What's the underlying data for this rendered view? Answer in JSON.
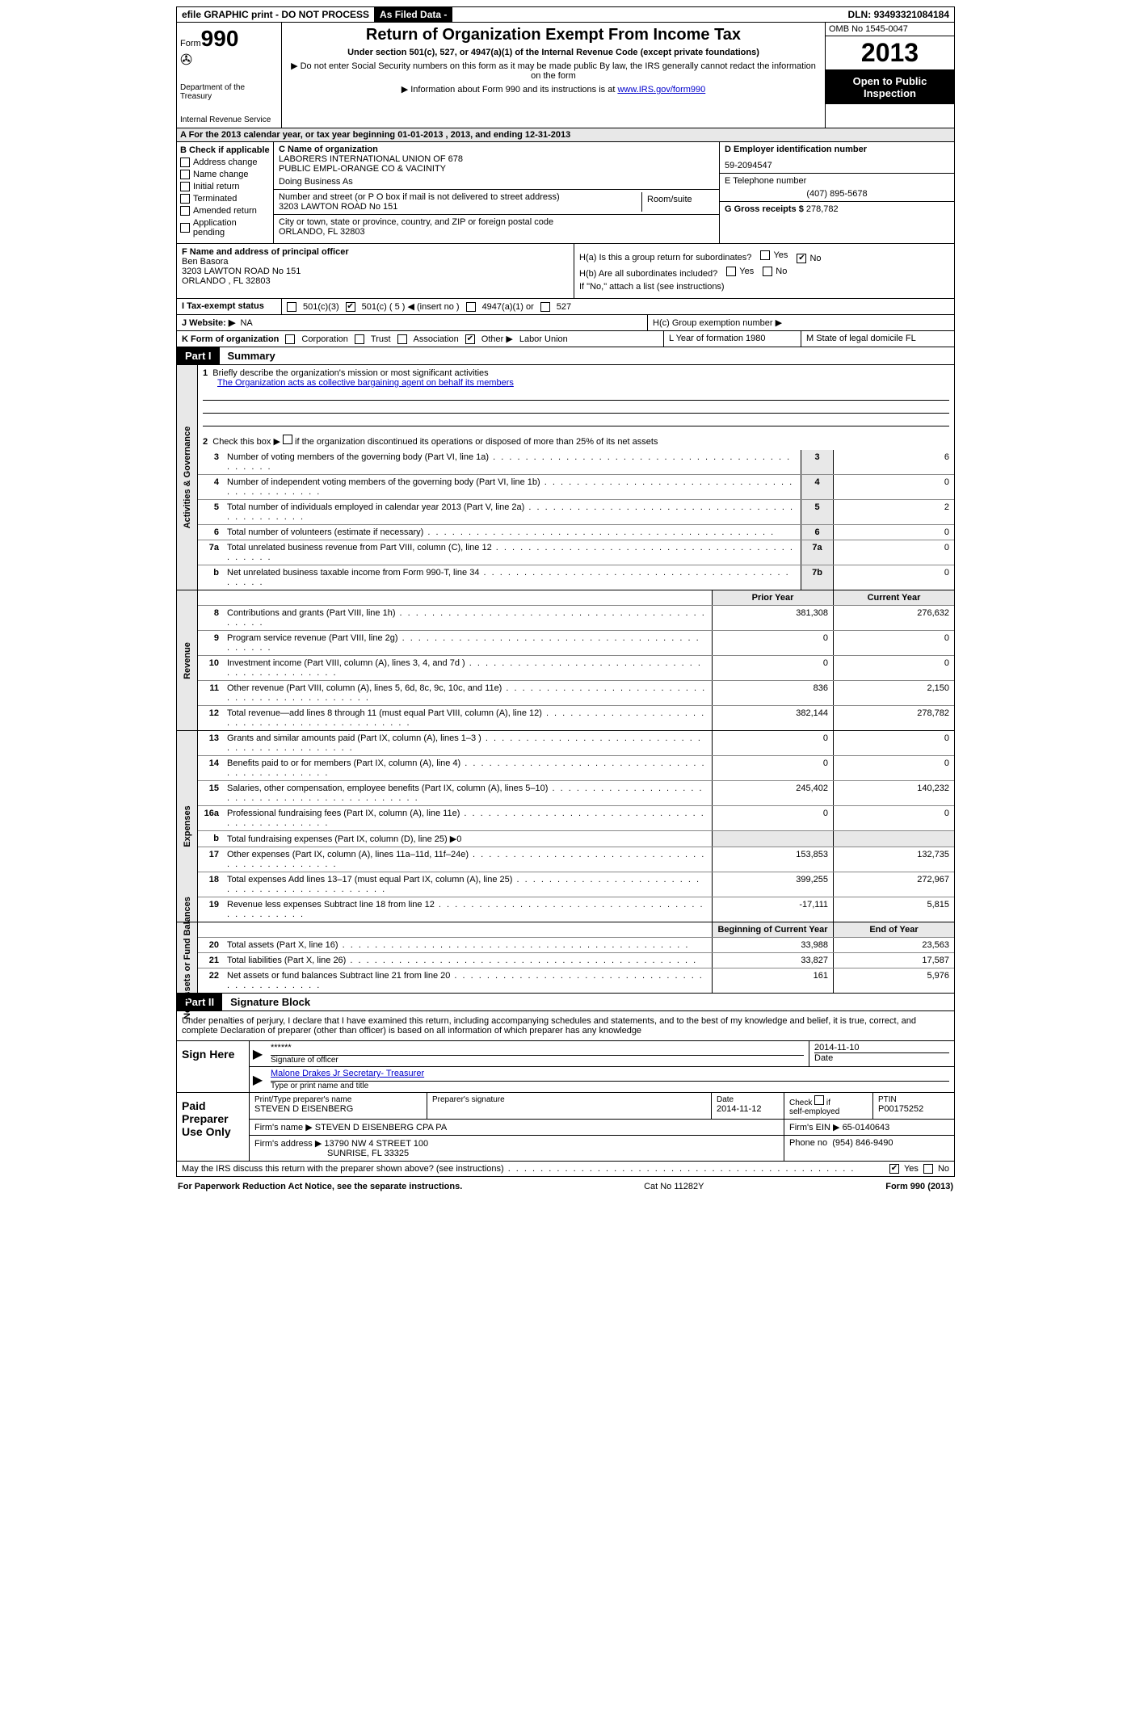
{
  "topbar": {
    "efile": "efile GRAPHIC print - DO NOT PROCESS",
    "asfiled": "As Filed Data -",
    "dln_label": "DLN:",
    "dln": "93493321084184"
  },
  "header": {
    "form_label": "Form",
    "form_no": "990",
    "dept1": "Department of the Treasury",
    "dept2": "Internal Revenue Service",
    "title": "Return of Organization Exempt From Income Tax",
    "sub": "Under section 501(c), 527, or 4947(a)(1) of the Internal Revenue Code (except private foundations)",
    "note1": "▶ Do not enter Social Security numbers on this form as it may be made public  By law, the IRS generally cannot redact the information on the form",
    "note2_pre": "▶ Information about Form 990 and its instructions is at ",
    "note2_link": "www.IRS.gov/form990",
    "omb": "OMB No  1545-0047",
    "year": "2013",
    "open1": "Open to Public",
    "open2": "Inspection"
  },
  "row_a": "A  For the 2013 calendar year, or tax year beginning 01-01-2013     , 2013, and ending 12-31-2013",
  "col_b": {
    "title": "B  Check if applicable",
    "items": [
      "Address change",
      "Name change",
      "Initial return",
      "Terminated",
      "Amended return",
      "Application pending"
    ]
  },
  "col_c": {
    "name_label": "C Name of organization",
    "name1": "LABORERS INTERNATIONAL UNION OF 678",
    "name2": "PUBLIC EMPL-ORANGE CO & VACINITY",
    "dba_label": "Doing Business As",
    "addr_label": "Number and street (or P O  box if mail is not delivered to street address)",
    "addr_room": "Room/suite",
    "addr": "3203 LAWTON ROAD No 151",
    "city_label": "City or town, state or province, country, and ZIP or foreign postal code",
    "city": "ORLANDO, FL  32803",
    "f_label": "F  Name and address of principal officer",
    "f_name": "Ben Basora",
    "f_addr1": "3203 LAWTON ROAD No 151",
    "f_addr2": "ORLANDO , FL  32803"
  },
  "col_d": {
    "ein_label": "D Employer identification number",
    "ein": "59-2094547",
    "tel_label": "E Telephone number",
    "tel": "(407) 895-5678",
    "gross_label": "G Gross receipts $",
    "gross": "278,782"
  },
  "h": {
    "ha": "H(a)  Is this a group return for subordinates?",
    "hb": "H(b)  Are all subordinates included?",
    "hb_note": "If \"No,\" attach a list  (see instructions)",
    "hc": "H(c)  Group exemption number ▶",
    "yes": "Yes",
    "no": "No"
  },
  "row_i": {
    "label": "I   Tax-exempt status",
    "o1": "501(c)(3)",
    "o2": "501(c) ( 5 ) ◀ (insert no )",
    "o3": "4947(a)(1) or",
    "o4": "527"
  },
  "row_j": {
    "label": "J   Website: ▶",
    "val": "NA"
  },
  "row_k": {
    "label": "K Form of organization",
    "opts": [
      "Corporation",
      "Trust",
      "Association",
      "Other ▶"
    ],
    "other_val": "Labor Union",
    "l": "L Year of formation  1980",
    "m": "M State of legal domicile  FL"
  },
  "parts": {
    "p1": "Part I",
    "p1t": "Summary",
    "p2": "Part II",
    "p2t": "Signature Block"
  },
  "vtabs": {
    "ag": "Activities & Governance",
    "rev": "Revenue",
    "exp": "Expenses",
    "na": "Net Assets or Fund Balances"
  },
  "summary": {
    "l1": "Briefly describe the organization's mission or most significant activities",
    "l1v": "The Organization acts as collective bargaining agent on behalf its members",
    "l2": "Check this box ▶     if the organization discontinued its operations or disposed of more than 25% of its net assets",
    "h_prior": "Prior Year",
    "h_curr": "Current Year",
    "h_beg": "Beginning of Current Year",
    "h_end": "End of Year",
    "lines_top": [
      {
        "n": "3",
        "t": "Number of voting members of the governing body (Part VI, line 1a)",
        "box": "3",
        "v": "6"
      },
      {
        "n": "4",
        "t": "Number of independent voting members of the governing body (Part VI, line 1b)",
        "box": "4",
        "v": "0"
      },
      {
        "n": "5",
        "t": "Total number of individuals employed in calendar year 2013 (Part V, line 2a)",
        "box": "5",
        "v": "2"
      },
      {
        "n": "6",
        "t": "Total number of volunteers (estimate if necessary)",
        "box": "6",
        "v": "0"
      },
      {
        "n": "7a",
        "t": "Total unrelated business revenue from Part VIII, column (C), line 12",
        "box": "7a",
        "v": "0"
      },
      {
        "n": "b",
        "t": "Net unrelated business taxable income from Form 990-T, line 34",
        "box": "7b",
        "v": "0"
      }
    ],
    "rev": [
      {
        "n": "8",
        "t": "Contributions and grants (Part VIII, line 1h)",
        "p": "381,308",
        "c": "276,632"
      },
      {
        "n": "9",
        "t": "Program service revenue (Part VIII, line 2g)",
        "p": "0",
        "c": "0"
      },
      {
        "n": "10",
        "t": "Investment income (Part VIII, column (A), lines 3, 4, and 7d )",
        "p": "0",
        "c": "0"
      },
      {
        "n": "11",
        "t": "Other revenue (Part VIII, column (A), lines 5, 6d, 8c, 9c, 10c, and 11e)",
        "p": "836",
        "c": "2,150"
      },
      {
        "n": "12",
        "t": "Total revenue—add lines 8 through 11 (must equal Part VIII, column (A), line 12)",
        "p": "382,144",
        "c": "278,782"
      }
    ],
    "exp": [
      {
        "n": "13",
        "t": "Grants and similar amounts paid (Part IX, column (A), lines 1–3 )",
        "p": "0",
        "c": "0"
      },
      {
        "n": "14",
        "t": "Benefits paid to or for members (Part IX, column (A), line 4)",
        "p": "0",
        "c": "0"
      },
      {
        "n": "15",
        "t": "Salaries, other compensation, employee benefits (Part IX, column (A), lines 5–10)",
        "p": "245,402",
        "c": "140,232"
      },
      {
        "n": "16a",
        "t": "Professional fundraising fees (Part IX, column (A), line 11e)",
        "p": "0",
        "c": "0"
      },
      {
        "n": "b",
        "t": "Total fundraising expenses (Part IX, column (D), line 25) ▶0",
        "p": "",
        "c": ""
      },
      {
        "n": "17",
        "t": "Other expenses (Part IX, column (A), lines 11a–11d, 11f–24e)",
        "p": "153,853",
        "c": "132,735"
      },
      {
        "n": "18",
        "t": "Total expenses  Add lines 13–17 (must equal Part IX, column (A), line 25)",
        "p": "399,255",
        "c": "272,967"
      },
      {
        "n": "19",
        "t": "Revenue less expenses  Subtract line 18 from line 12",
        "p": "-17,111",
        "c": "5,815"
      }
    ],
    "na": [
      {
        "n": "20",
        "t": "Total assets (Part X, line 16)",
        "p": "33,988",
        "c": "23,563"
      },
      {
        "n": "21",
        "t": "Total liabilities (Part X, line 26)",
        "p": "33,827",
        "c": "17,587"
      },
      {
        "n": "22",
        "t": "Net assets or fund balances  Subtract line 21 from line 20",
        "p": "161",
        "c": "5,976"
      }
    ]
  },
  "sig": {
    "perjury": "Under penalties of perjury, I declare that I have examined this return, including accompanying schedules and statements, and to the best of my knowledge and belief, it is true, correct, and complete  Declaration of preparer (other than officer) is based on all information of which preparer has any knowledge",
    "sign_here": "Sign Here",
    "stars": "******",
    "sig_of_officer": "Signature of officer",
    "date": "2014-11-10",
    "date_label": "Date",
    "name": "Malone Drakes Jr Secretary- Treasurer",
    "name_label": "Type or print name and title"
  },
  "prep": {
    "label": "Paid Preparer Use Only",
    "r1": {
      "c1l": "Print/Type preparer's name",
      "c1": "STEVEN D EISENBERG",
      "c2l": "Preparer's signature",
      "c3l": "Date",
      "c3": "2014-11-12",
      "c4l": "Check      if self-employed",
      "c5l": "PTIN",
      "c5": "P00175252"
    },
    "r2": {
      "l": "Firm's name     ▶",
      "v": "STEVEN D EISENBERG CPA PA",
      "einl": "Firm's EIN ▶",
      "ein": "65-0140643"
    },
    "r3": {
      "l": "Firm's address ▶",
      "v1": "13790 NW 4 STREET 100",
      "v2": "SUNRISE, FL  33325",
      "phl": "Phone no",
      "ph": "(954) 846-9490"
    }
  },
  "discuss": {
    "t": "May the IRS discuss this return with the preparer shown above? (see instructions)",
    "yes": "Yes",
    "no": "No"
  },
  "foot": {
    "l": "For Paperwork Reduction Act Notice, see the separate instructions.",
    "m": "Cat No  11282Y",
    "r": "Form 990 (2013)"
  }
}
